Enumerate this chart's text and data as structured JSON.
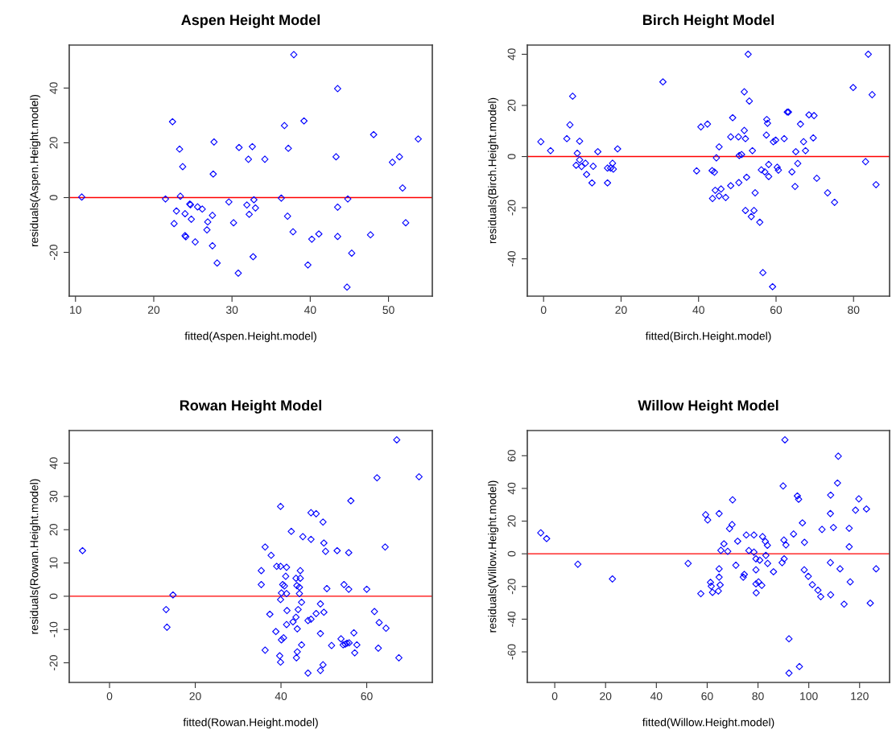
{
  "chart_data": [
    {
      "type": "scatter",
      "title": "Aspen Height Model",
      "xlabel": "fitted(Aspen.Height.model)",
      "ylabel": "residuals(Aspen.Height.model)",
      "marker": "diamond",
      "grid": false,
      "xlim": [
        9.2,
        55.6
      ],
      "ylim": [
        -36,
        55.7
      ],
      "xticks": [
        10,
        20,
        30,
        40,
        50
      ],
      "yticks": [
        -20,
        0,
        20,
        40
      ],
      "ref_lines": [
        {
          "axis": "y",
          "value": 0,
          "color": "#ff0000"
        }
      ],
      "series": [
        {
          "color": "#0000ff",
          "x": [
            10.8,
            21.5,
            22.4,
            23.3,
            23.7,
            23.4,
            22.9,
            22.6,
            24.0,
            24.7,
            24.6,
            24.8,
            25.6,
            26.2,
            24.0,
            24.1,
            25.3,
            26.9,
            26.8,
            27.5,
            27.6,
            27.7,
            27.5,
            28.1,
            29.6,
            30.2,
            30.9,
            30.8,
            31.9,
            32.2,
            32.1,
            32.6,
            32.8,
            33.0,
            32.7,
            34.2,
            36.3,
            36.7,
            37.2,
            37.1,
            37.8,
            37.9,
            39.2,
            39.7,
            40.2,
            41.1,
            43.3,
            43.5,
            43.5,
            43.5,
            44.8,
            44.7,
            45.3,
            47.7,
            48.1,
            50.5,
            51.4,
            51.8,
            52.2,
            53.8
          ],
          "values": [
            0.2,
            -0.5,
            27.7,
            17.7,
            11.3,
            0.5,
            -4.9,
            -9.5,
            -5.9,
            -2.6,
            -2.4,
            -7.9,
            -3.4,
            -4.2,
            -13.9,
            -14.3,
            -16.2,
            -8.9,
            -11.8,
            -6.5,
            8.6,
            20.3,
            -17.6,
            -23.9,
            -1.6,
            -9.2,
            18.3,
            -27.6,
            -2.7,
            -6.1,
            14.0,
            18.6,
            -0.8,
            -3.8,
            -21.6,
            14.0,
            -0.2,
            26.3,
            18.0,
            -6.8,
            -12.5,
            52.2,
            28.0,
            -24.6,
            -15.2,
            -13.3,
            14.9,
            39.8,
            -3.5,
            -14.2,
            -0.5,
            -32.7,
            -20.3,
            -13.6,
            23.0,
            12.9,
            14.9,
            3.5,
            -9.2,
            21.4
          ]
        }
      ]
    },
    {
      "type": "scatter",
      "title": "Birch Height Model",
      "xlabel": "fitted(Birch.Height.model)",
      "ylabel": "residuals(Birch.Height.model)",
      "marker": "diamond",
      "grid": false,
      "xlim": [
        -4.2,
        89.3
      ],
      "ylim": [
        -54.6,
        43.6
      ],
      "xticks": [
        0,
        20,
        40,
        60,
        80
      ],
      "yticks": [
        -40,
        -20,
        0,
        20,
        40
      ],
      "ref_lines": [
        {
          "axis": "y",
          "value": 0,
          "color": "#ff0000"
        }
      ],
      "series": [
        {
          "color": "#0000ff",
          "x": [
            -0.7,
            1.8,
            6.0,
            6.8,
            7.5,
            8.7,
            9.3,
            9.3,
            8.4,
            9.8,
            10.8,
            11.1,
            12.5,
            12.8,
            14.0,
            16.5,
            16.5,
            17.3,
            17.8,
            18.0,
            19.1,
            30.8,
            39.5,
            40.6,
            42.3,
            43.5,
            44.1,
            43.6,
            44.3,
            44.6,
            45.3,
            45.3,
            45.8,
            47.0,
            48.3,
            48.3,
            48.8,
            50.3,
            50.4,
            50.5,
            51.1,
            51.8,
            51.8,
            52.1,
            52.1,
            52.4,
            52.8,
            53.1,
            53.6,
            53.9,
            54.3,
            54.6,
            55.8,
            56.2,
            56.6,
            57.1,
            57.6,
            57.8,
            57.5,
            58.1,
            58.1,
            59.1,
            59.3,
            59.9,
            60.3,
            60.6,
            62.1,
            62.9,
            63.2,
            64.1,
            64.9,
            65.1,
            65.6,
            66.3,
            67.1,
            67.6,
            68.5,
            69.6,
            69.8,
            70.5,
            73.3,
            75.1,
            79.9,
            83.1,
            83.8,
            84.8,
            85.8
          ],
          "values": [
            5.8,
            2.3,
            7.0,
            12.4,
            23.6,
            1.3,
            6.0,
            -1.3,
            -3.4,
            -3.9,
            -2.6,
            -7.0,
            -10.3,
            -3.8,
            1.9,
            -4.5,
            -10.3,
            -4.5,
            -2.6,
            -4.9,
            3.0,
            29.2,
            -5.6,
            11.6,
            12.7,
            -5.5,
            -6.1,
            -16.4,
            -13.2,
            -0.5,
            3.8,
            -15.4,
            -12.7,
            -16.0,
            -11.4,
            7.7,
            15.2,
            7.7,
            -10.2,
            0.4,
            0.8,
            10.2,
            25.3,
            7.0,
            -21.1,
            -8.1,
            40.0,
            21.7,
            -23.5,
            2.3,
            -21.1,
            -14.2,
            -25.7,
            -5.2,
            -45.4,
            -6.0,
            14.5,
            13.0,
            8.4,
            -3.1,
            -7.8,
            -50.9,
            5.8,
            6.4,
            -4.2,
            -5.3,
            7.0,
            17.4,
            17.4,
            -6.0,
            -11.7,
            1.9,
            -2.7,
            12.7,
            5.8,
            2.3,
            16.3,
            7.3,
            16.0,
            -8.5,
            -14.2,
            -17.9,
            27.0,
            -2.0,
            40.0,
            24.2,
            -11.0
          ]
        }
      ]
    },
    {
      "type": "scatter",
      "title": "Rowan Height Model",
      "xlabel": "fitted(Rowan.Height.model)",
      "ylabel": "residuals(Rowan.Height.model)",
      "marker": "diamond",
      "grid": false,
      "xlim": [
        -9.4,
        75.3
      ],
      "ylim": [
        -25.9,
        49.8
      ],
      "xticks": [
        0,
        20,
        40,
        60
      ],
      "yticks": [
        -20,
        -10,
        0,
        10,
        20,
        30,
        40
      ],
      "ref_lines": [
        {
          "axis": "y",
          "value": 0,
          "color": "#ff0000"
        }
      ],
      "series": [
        {
          "color": "#0000ff",
          "x": [
            -6.3,
            13.2,
            13.4,
            14.8,
            35.4,
            35.4,
            36.3,
            36.3,
            37.4,
            37.7,
            38.8,
            39.0,
            39.9,
            39.9,
            39.9,
            40.1,
            39.7,
            39.9,
            40.1,
            40.6,
            40.4,
            40.8,
            41.1,
            41.3,
            41.3,
            41.4,
            41.3,
            42.4,
            42.8,
            43.5,
            43.5,
            43.7,
            43.8,
            43.8,
            43.6,
            44.0,
            44.3,
            44.3,
            44.5,
            44.5,
            44.8,
            44.8,
            45.1,
            46.3,
            46.3,
            47.0,
            47.0,
            47.0,
            48.2,
            48.2,
            49.2,
            49.2,
            49.2,
            49.8,
            49.8,
            50.0,
            50.0,
            50.4,
            50.7,
            51.8,
            53.1,
            54.0,
            54.5,
            55.0,
            55.4,
            55.9,
            54.7,
            55.8,
            55.8,
            56.3,
            57.0,
            57.2,
            57.7,
            60.0,
            61.8,
            62.4,
            62.9,
            62.7,
            64.3,
            64.5,
            67.0,
            67.5,
            72.2
          ],
          "values": [
            13.7,
            -4.0,
            -9.3,
            0.4,
            7.7,
            3.5,
            14.8,
            -16.2,
            -5.4,
            12.3,
            -10.6,
            9.0,
            9.0,
            27.0,
            -1.0,
            1.0,
            -17.9,
            -19.8,
            -13.1,
            -12.5,
            3.5,
            3.1,
            6.0,
            8.7,
            0.8,
            -4.3,
            -8.5,
            19.5,
            -7.7,
            -6.3,
            5.4,
            3.2,
            -9.8,
            -16.7,
            -18.5,
            -4.0,
            2.7,
            0.8,
            7.7,
            5.4,
            -1.8,
            -14.6,
            17.9,
            -7.3,
            -23.1,
            -6.9,
            17.1,
            25.1,
            24.8,
            -5.2,
            -2.3,
            -11.2,
            -22.3,
            -20.6,
            22.3,
            16.0,
            -4.8,
            13.5,
            2.3,
            -14.8,
            13.7,
            -12.8,
            -14.6,
            -14.4,
            -14.1,
            -14.0,
            3.5,
            2.1,
            13.1,
            28.7,
            -11.0,
            -17.0,
            -14.6,
            2.1,
            -4.6,
            35.6,
            -7.9,
            -15.6,
            14.8,
            -9.6,
            47.0,
            -18.5,
            35.9
          ]
        }
      ]
    },
    {
      "type": "scatter",
      "title": "Willow Height Model",
      "xlabel": "fitted(Willow.Height.model)",
      "ylabel": "residuals(Willow.Height.model)",
      "marker": "diamond",
      "grid": false,
      "xlim": [
        -10.8,
        131.8
      ],
      "ylim": [
        -78.7,
        75.4
      ],
      "xticks": [
        0,
        20,
        40,
        60,
        80,
        100,
        120
      ],
      "yticks": [
        -60,
        -40,
        -20,
        0,
        20,
        40,
        60
      ],
      "ref_lines": [
        {
          "axis": "y",
          "value": 0,
          "color": "#ff0000"
        }
      ],
      "series": [
        {
          "color": "#0000ff",
          "x": [
            -5.5,
            -3.2,
            9.1,
            22.7,
            52.5,
            57.5,
            59.4,
            60.2,
            61.3,
            61.6,
            62.1,
            64.4,
            64.7,
            64.7,
            65.1,
            64.7,
            65.4,
            66.6,
            68.1,
            68.8,
            69.8,
            70.0,
            71.3,
            72.0,
            74.2,
            74.6,
            75.4,
            76.4,
            78.4,
            78.4,
            79.2,
            79.2,
            79.2,
            79.3,
            80.2,
            80.7,
            81.5,
            81.8,
            82.9,
            83.7,
            83.1,
            83.8,
            86.1,
            89.5,
            89.9,
            90.2,
            90.3,
            90.6,
            91.0,
            92.2,
            92.2,
            94.0,
            95.5,
            96.0,
            96.3,
            97.5,
            98.3,
            98.2,
            99.8,
            101.4,
            103.6,
            104.7,
            105.2,
            108.6,
            108.5,
            109.7,
            108.5,
            108.6,
            111.3,
            111.6,
            112.3,
            113.9,
            115.9,
            115.9,
            116.3,
            118.4,
            119.7,
            122.7,
            124.2,
            126.5
          ],
          "values": [
            12.8,
            9.3,
            -6.4,
            -15.4,
            -5.9,
            -24.4,
            23.9,
            20.7,
            -17.5,
            -19.8,
            -23.6,
            -22.8,
            -9.2,
            -14.3,
            -19.0,
            24.6,
            2.1,
            6.1,
            1.5,
            15.4,
            17.9,
            33.0,
            -7.0,
            7.7,
            -14.3,
            -12.6,
            11.5,
            2.0,
            11.5,
            1.0,
            -3.1,
            -9.8,
            -18.4,
            -23.9,
            -17.2,
            -3.9,
            -19.3,
            10.5,
            7.5,
            5.2,
            -1.0,
            -5.9,
            -11.0,
            -5.4,
            41.5,
            8.4,
            -3.1,
            69.7,
            5.4,
            -52.0,
            -73.0,
            12.1,
            35.4,
            33.4,
            -69.0,
            18.9,
            7.0,
            -9.8,
            -13.8,
            -18.9,
            -22.3,
            -26.2,
            14.9,
            35.9,
            24.6,
            16.1,
            -5.4,
            -25.1,
            43.3,
            59.7,
            -9.2,
            -30.8,
            15.6,
            4.3,
            -17.2,
            26.7,
            33.6,
            27.4,
            -30.2,
            -9.2
          ]
        }
      ]
    }
  ]
}
